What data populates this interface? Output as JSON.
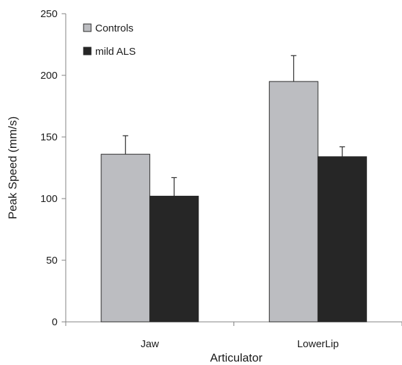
{
  "chart_data": {
    "type": "bar",
    "title": "",
    "xlabel": "Articulator",
    "ylabel": "Peak Speed (mm/s)",
    "categories": [
      "Jaw",
      "LowerLip"
    ],
    "ylim": [
      0,
      250
    ],
    "yticks": [
      0,
      50,
      100,
      150,
      200,
      250
    ],
    "yticks_labels": [
      "0",
      "50",
      "100",
      "150",
      "200",
      "250"
    ],
    "grid": false,
    "legend_position": "top-left",
    "series": [
      {
        "name": "Controls",
        "color": "#bcbdc1",
        "values": [
          136,
          195
        ],
        "error": [
          15,
          21
        ]
      },
      {
        "name": "mild ALS",
        "color": "#262626",
        "values": [
          102,
          134
        ],
        "error": [
          15,
          8
        ]
      }
    ]
  }
}
